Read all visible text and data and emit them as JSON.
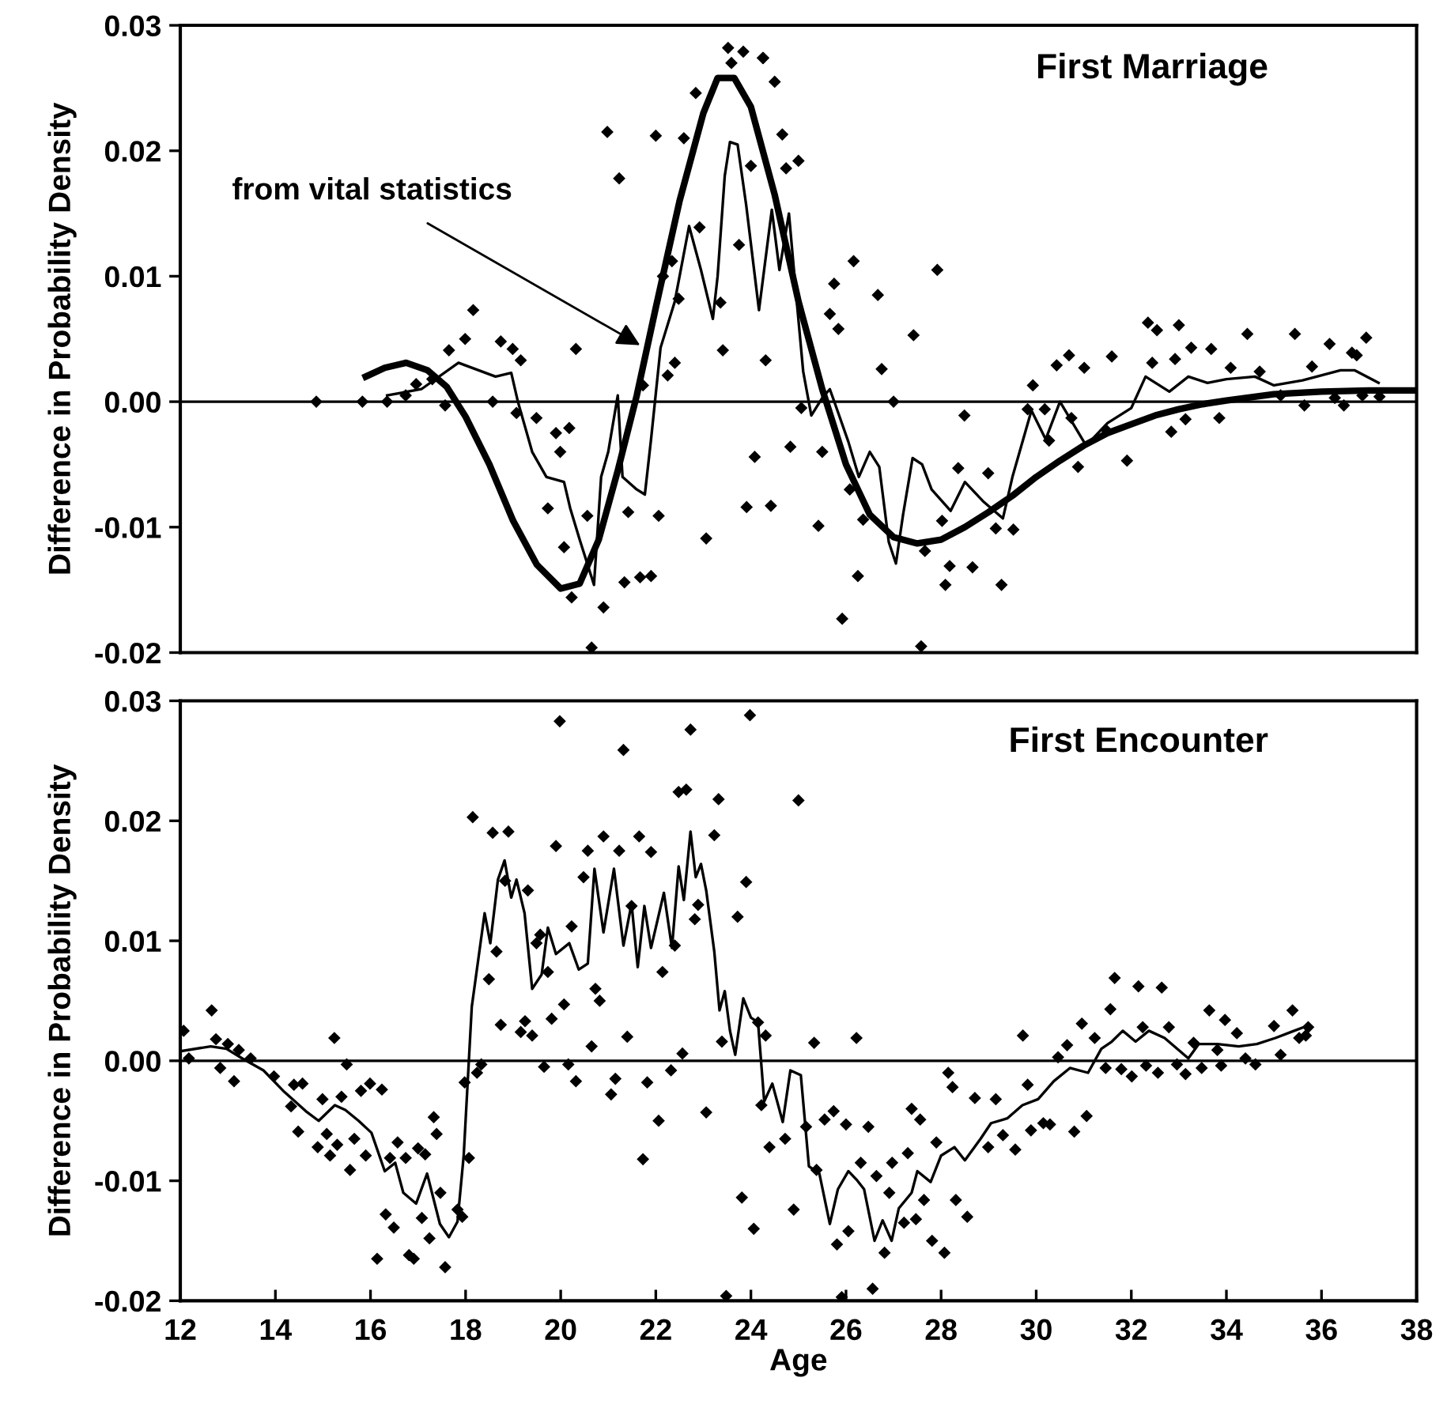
{
  "chart_data": [
    {
      "type": "scatter",
      "ylabel": "Difference in Probability Density",
      "xlim": [
        12,
        38
      ],
      "ylim": [
        -0.02,
        0.03
      ],
      "yticks": [
        {
          "value": -0.02,
          "label": "-0.02"
        },
        {
          "value": -0.01,
          "label": "-0.01"
        },
        {
          "value": 0,
          "label": "0.00"
        },
        {
          "value": 0.01,
          "label": "0.01"
        },
        {
          "value": 0.02,
          "label": "0.02"
        },
        {
          "value": 0.03,
          "label": "0.03"
        }
      ],
      "tick_labels": "y",
      "grid": false,
      "legend": false,
      "ref_lines": [
        {
          "axis": "y",
          "value": 0,
          "color": "#000000"
        }
      ],
      "annotations": [
        "First Marriage",
        {
          "text": "from vital statistics",
          "x": 21.67,
          "y": 0.0045
        }
      ],
      "series": [
        {
          "marker": "diamond",
          "color": "#000000",
          "x": [
            14.86,
            15.83,
            16.35,
            16.74,
            16.96,
            17.3,
            17.65,
            17.99,
            18.16,
            17.57,
            18.74,
            18.99,
            19.16,
            18.57,
            19.07,
            19.49,
            19.9,
            20.18,
            19.99,
            19.73,
            20.07,
            20.23,
            20.32,
            20.56,
            20.65,
            20.9,
            20.98,
            21.23,
            21.34,
            21.67,
            21.9,
            21.42,
            22.06,
            21.73,
            22.0,
            22.25,
            22.4,
            22.48,
            22.34,
            22.15,
            22.59,
            22.84,
            22.92,
            23.06,
            23.41,
            23.36,
            23.52,
            23.59,
            23.84,
            23.75,
            23.91,
            24.08,
            24.31,
            24.26,
            24.0,
            24.5,
            24.25,
            24.66,
            25.0,
            24.74,
            24.83,
            25.5,
            25.06,
            25.42,
            24.42,
            25.75,
            26.16,
            25.66,
            25.84,
            26.67,
            27.92,
            27.42,
            26.75,
            27.0,
            26.08,
            26.36,
            26.25,
            25.92,
            27.58,
            27.66,
            28.18,
            28.09,
            28.66,
            29.27,
            28.49,
            28.02,
            28.36,
            28.99,
            29.15,
            29.52,
            29.93,
            29.82,
            30.18,
            30.43,
            30.69,
            31.01,
            30.74,
            30.27,
            30.88,
            31.59,
            31.91,
            31.48,
            32.35,
            32.54,
            33.0,
            32.44,
            32.92,
            33.26,
            33.68,
            32.84,
            33.14,
            33.85,
            34.44,
            34.09,
            34.7,
            35.44,
            35.8,
            35.64,
            36.17,
            36.47,
            36.64,
            36.94,
            36.74,
            37.22,
            36.86,
            36.28,
            35.14
          ],
          "values": [
            0,
            0,
            0,
            0.0005,
            0.0014,
            0.0018,
            0.0041,
            0.005,
            0.0073,
            -0.0003,
            0.0048,
            0.0042,
            0.0033,
            0,
            -0.0009,
            -0.0013,
            -0.0025,
            -0.0021,
            -0.004,
            -0.0085,
            -0.0116,
            -0.0156,
            0.0042,
            -0.0091,
            -0.0196,
            -0.0164,
            0.0215,
            0.0178,
            -0.0144,
            -0.014,
            -0.0139,
            -0.0088,
            -0.0091,
            0.0013,
            0.0212,
            0.0021,
            0.0031,
            0.0082,
            0.0112,
            0.01,
            0.021,
            0.0246,
            0.0139,
            -0.0109,
            0.0041,
            0.0079,
            0.0282,
            0.027,
            0.0279,
            0.0125,
            -0.0084,
            -0.0044,
            0.0033,
            0.0274,
            0.0188,
            0.0255,
            0.0274,
            0.0213,
            0.0192,
            0.0186,
            -0.0036,
            -0.004,
            -0.0005,
            -0.0099,
            -0.0083,
            0.0094,
            0.0112,
            0.007,
            0.0058,
            0.0085,
            0.0105,
            0.0053,
            0.0026,
            0,
            -0.007,
            -0.0094,
            -0.0139,
            -0.0173,
            -0.0195,
            -0.0119,
            -0.0131,
            -0.0146,
            -0.0132,
            -0.0146,
            -0.0011,
            -0.0095,
            -0.0053,
            -0.0057,
            -0.0101,
            -0.0102,
            0.0013,
            -0.0006,
            -0.0006,
            0.0029,
            0.0037,
            0.0027,
            -0.0013,
            -0.0031,
            -0.0052,
            0.0036,
            -0.0047,
            -0.0023,
            0.0063,
            0.0057,
            0.0061,
            0.0031,
            0.0034,
            0.0043,
            0.0042,
            -0.0024,
            -0.0014,
            -0.0013,
            0.0054,
            0.0027,
            0.0024,
            0.0054,
            0.0028,
            -0.0003,
            0.0046,
            -0.0003,
            0.0039,
            0.0051,
            0.0037,
            0.0004,
            0.0005,
            0.0003,
            0.0005
          ]
        },
        {
          "type": "line",
          "color": "#000000",
          "x": [
            16.35,
            17.07,
            17.85,
            18.63,
            18.96,
            19.1,
            19.4,
            19.7,
            20.07,
            20.2,
            20.4,
            20.7,
            20.85,
            21.0,
            21.2,
            21.3,
            21.6,
            21.77,
            21.9,
            22.1,
            22.4,
            22.7,
            22.95,
            23.2,
            23.3,
            23.45,
            23.56,
            23.72,
            23.9,
            24.17,
            24.44,
            24.6,
            24.8,
            24.94,
            25.1,
            25.27,
            25.5,
            25.66,
            25.8,
            26.05,
            26.27,
            26.5,
            26.7,
            26.9,
            27.05,
            27.2,
            27.4,
            27.6,
            27.8,
            28.2,
            28.5,
            28.9,
            29.3,
            29.5,
            29.9,
            30.2,
            30.5,
            31.05,
            31.5,
            32.0,
            32.3,
            32.8,
            33.2,
            33.6,
            34.0,
            34.6,
            35.0,
            35.6,
            36.4,
            36.7,
            37.2
          ],
          "values": [
            0.0005,
            0.001,
            0.0031,
            0.002,
            0.0023,
            0.0,
            -0.004,
            -0.006,
            -0.0064,
            -0.0085,
            -0.011,
            -0.0146,
            -0.006,
            -0.004,
            0.0005,
            -0.006,
            -0.007,
            -0.0074,
            -0.003,
            0.0043,
            0.008,
            0.014,
            0.0105,
            0.0066,
            0.01,
            0.018,
            0.0207,
            0.0205,
            0.0157,
            0.0073,
            0.0153,
            0.0105,
            0.015,
            0.009,
            0.0024,
            -0.0011,
            0.0003,
            0.001,
            -0.0005,
            -0.0032,
            -0.006,
            -0.004,
            -0.0052,
            -0.0112,
            -0.0129,
            -0.009,
            -0.0045,
            -0.005,
            -0.007,
            -0.0087,
            -0.0064,
            -0.008,
            -0.0093,
            -0.006,
            -0.0007,
            -0.003,
            0.0,
            -0.0035,
            -0.0017,
            -0.0005,
            0.002,
            0.0008,
            0.002,
            0.0015,
            0.0018,
            0.002,
            0.0013,
            0.0017,
            0.0025,
            0.0025,
            0.0015
          ]
        },
        {
          "type": "line",
          "color": "#000000",
          "x": [
            15.9,
            16.3,
            16.75,
            17.2,
            17.6,
            18.0,
            18.5,
            19.0,
            19.5,
            20.0,
            20.4,
            20.8,
            21.2,
            21.6,
            22.0,
            22.5,
            23.0,
            23.3,
            23.65,
            24.0,
            24.5,
            25.0,
            25.5,
            26.0,
            26.5,
            27.0,
            27.5,
            28.0,
            28.5,
            29.0,
            29.5,
            30.0,
            30.5,
            31.0,
            31.5,
            32.0,
            32.5,
            33.0,
            33.5,
            34.0,
            35.0,
            36.0,
            37.0,
            38.0
          ],
          "values": [
            0.002,
            0.0027,
            0.0031,
            0.0025,
            0.0012,
            -0.0012,
            -0.005,
            -0.0095,
            -0.013,
            -0.0149,
            -0.0145,
            -0.011,
            -0.0055,
            0.0005,
            0.0075,
            0.016,
            0.023,
            0.0258,
            0.0258,
            0.0235,
            0.0165,
            0.008,
            0.001,
            -0.005,
            -0.009,
            -0.0108,
            -0.0113,
            -0.011,
            -0.01,
            -0.0088,
            -0.0075,
            -0.006,
            -0.0047,
            -0.0035,
            -0.0025,
            -0.0018,
            -0.0011,
            -0.0006,
            -0.0002,
            0.0001,
            0.0006,
            0.0008,
            0.0009,
            0.0009
          ]
        }
      ]
    },
    {
      "type": "scatter",
      "xlabel": "Age",
      "ylabel": "Difference in Probability Density",
      "xlim": [
        12,
        38
      ],
      "xticks": [
        12,
        14,
        16,
        18,
        20,
        22,
        24,
        26,
        28,
        30,
        32,
        34,
        36,
        38
      ],
      "ylim": [
        -0.02,
        0.03
      ],
      "yticks": [
        {
          "value": -0.02,
          "label": "-0.02"
        },
        {
          "value": -0.01,
          "label": "-0.01"
        },
        {
          "value": 0,
          "label": "0.00"
        },
        {
          "value": 0.01,
          "label": "0.01"
        },
        {
          "value": 0.02,
          "label": "0.02"
        },
        {
          "value": 0.03,
          "label": "0.03"
        }
      ],
      "grid": false,
      "legend": false,
      "ref_lines": [
        {
          "axis": "y",
          "value": 0,
          "color": "#000000"
        }
      ],
      "annotations": [
        "First Encounter"
      ],
      "series": [
        {
          "marker": "diamond",
          "color": "#000000",
          "x": [
            12.07,
            12.18,
            12.66,
            12.75,
            12.84,
            13.0,
            13.13,
            13.23,
            13.48,
            13.97,
            14.33,
            14.39,
            14.48,
            14.57,
            14.89,
            14.99,
            15.08,
            15.15,
            15.24,
            15.3,
            15.39,
            15.5,
            15.57,
            15.66,
            15.8,
            15.9,
            15.99,
            16.24,
            16.14,
            16.32,
            16.49,
            16.57,
            16.41,
            16.74,
            16.81,
            16.91,
            17.0,
            17.08,
            17.15,
            17.24,
            17.33,
            17.39,
            17.47,
            17.57,
            17.83,
            17.93,
            17.98,
            18.07,
            18.15,
            18.24,
            18.33,
            18.49,
            18.57,
            18.65,
            18.74,
            18.83,
            18.9,
            19.16,
            19.25,
            19.31,
            19.4,
            19.49,
            19.57,
            19.65,
            19.73,
            19.81,
            19.9,
            19.98,
            20.07,
            20.16,
            20.23,
            20.32,
            20.48,
            20.57,
            20.65,
            20.73,
            20.82,
            20.9,
            21.06,
            21.15,
            21.23,
            21.32,
            21.4,
            21.49,
            21.65,
            21.73,
            21.82,
            21.9,
            22.06,
            22.14,
            22.32,
            22.4,
            22.48,
            22.56,
            22.64,
            22.73,
            22.82,
            22.89,
            23.06,
            23.23,
            23.32,
            23.39,
            23.48,
            23.72,
            23.81,
            23.9,
            23.98,
            24.06,
            24.15,
            24.22,
            24.31,
            24.39,
            25.0,
            25.33,
            26.22,
            24.9,
            24.72,
            25.16,
            25.38,
            25.55,
            25.74,
            25.81,
            25.91,
            26.0,
            26.05,
            26.31,
            26.47,
            26.56,
            26.64,
            26.81,
            26.91,
            26.97,
            27.22,
            27.3,
            27.38,
            27.47,
            27.56,
            27.64,
            27.81,
            27.9,
            28.07,
            28.15,
            28.24,
            28.31,
            28.55,
            28.71,
            28.99,
            29.15,
            29.3,
            29.56,
            29.72,
            29.82,
            29.89,
            30.15,
            30.29,
            30.46,
            30.65,
            30.8,
            30.96,
            31.06,
            31.23,
            31.46,
            31.56,
            31.65,
            31.79,
            32.01,
            32.15,
            32.24,
            32.31,
            32.56,
            32.64,
            32.79,
            32.96,
            33.14,
            33.31,
            33.48,
            33.64,
            33.81,
            33.89,
            33.97,
            34.22,
            34.4,
            34.61,
            35.0,
            35.14,
            35.39,
            35.53,
            35.67,
            35.72
          ],
          "values": [
            0.0025,
            0.0002,
            0.0042,
            0.0018,
            -0.0006,
            0.0014,
            -0.0017,
            0.0009,
            0.0002,
            -0.0013,
            -0.0038,
            -0.002,
            -0.0059,
            -0.0019,
            -0.0072,
            -0.0032,
            -0.0061,
            -0.0079,
            0.0019,
            -0.007,
            -0.003,
            -0.0003,
            -0.0091,
            -0.0065,
            -0.0025,
            -0.0079,
            -0.0019,
            -0.0024,
            -0.0165,
            -0.0128,
            -0.0139,
            -0.0068,
            -0.0081,
            -0.0081,
            -0.0162,
            -0.0165,
            -0.0073,
            -0.0131,
            -0.0078,
            -0.0148,
            -0.0047,
            -0.0061,
            -0.011,
            -0.0172,
            -0.0124,
            -0.013,
            -0.0018,
            -0.0081,
            0.0203,
            -0.001,
            -0.0003,
            0.0068,
            0.019,
            0.0091,
            0.003,
            0.015,
            0.0191,
            0.0024,
            0.0033,
            0.0142,
            0.0021,
            0.0098,
            0.0105,
            -0.0005,
            0.0074,
            0.0035,
            0.0179,
            0.0283,
            0.0047,
            -0.0003,
            0.0112,
            -0.0017,
            0.0153,
            0.0175,
            0.0012,
            0.006,
            0.005,
            0.0187,
            -0.0028,
            -0.0015,
            0.0175,
            0.0259,
            0.002,
            0.0129,
            0.0187,
            -0.0082,
            -0.0018,
            0.0174,
            -0.005,
            0.0074,
            -0.0008,
            0.0096,
            0.0224,
            0.0006,
            0.0226,
            0.0276,
            0.0118,
            0.013,
            -0.0043,
            0.0188,
            0.0218,
            0.0016,
            -0.0196,
            0.012,
            -0.0114,
            0.0149,
            0.0288,
            -0.014,
            0.0032,
            -0.0037,
            0.0021,
            -0.0072,
            0.0217,
            0.0015,
            0.0019,
            -0.0124,
            -0.0065,
            -0.0055,
            -0.0091,
            -0.0049,
            -0.0042,
            -0.0153,
            -0.0197,
            -0.0053,
            -0.0142,
            -0.0085,
            -0.0055,
            -0.019,
            -0.0096,
            -0.016,
            -0.011,
            -0.0085,
            -0.0135,
            -0.0077,
            -0.004,
            -0.0132,
            -0.0049,
            -0.0116,
            -0.015,
            -0.0068,
            -0.016,
            -0.001,
            -0.0022,
            -0.0116,
            -0.013,
            -0.0031,
            -0.0072,
            -0.0032,
            -0.0062,
            -0.0074,
            0.0021,
            -0.002,
            -0.0058,
            -0.0052,
            -0.0053,
            0.0003,
            0.0013,
            -0.0059,
            0.0031,
            -0.0046,
            0.0019,
            -0.0006,
            0.0043,
            0.0069,
            -0.0007,
            -0.0013,
            0.0062,
            0.0028,
            -0.0004,
            -0.001,
            0.0061,
            0.0028,
            -0.0003,
            -0.0011,
            0.0015,
            -0.0006,
            0.0042,
            0.0009,
            -0.0004,
            0.0034,
            0.0023,
            0.0002,
            -0.0003,
            0.0029,
            0.0005,
            0.0042,
            0.0019,
            0.0021,
            0.0028
          ]
        },
        {
          "type": "line",
          "color": "#000000",
          "x": [
            12.0,
            12.64,
            12.97,
            13.3,
            13.75,
            14.19,
            14.64,
            14.91,
            15.25,
            15.47,
            15.75,
            16.02,
            16.3,
            16.52,
            16.69,
            16.96,
            17.19,
            17.46,
            17.65,
            17.83,
            17.96,
            18.13,
            18.4,
            18.52,
            18.68,
            18.82,
            18.96,
            19.07,
            19.24,
            19.4,
            19.6,
            19.73,
            19.9,
            20.18,
            20.38,
            20.57,
            20.71,
            20.9,
            21.12,
            21.32,
            21.49,
            21.62,
            21.76,
            21.9,
            22.17,
            22.34,
            22.48,
            22.59,
            22.73,
            22.84,
            22.95,
            23.06,
            23.23,
            23.34,
            23.45,
            23.56,
            23.67,
            23.84,
            24.0,
            24.15,
            24.28,
            24.45,
            24.67,
            24.83,
            25.05,
            25.22,
            25.44,
            25.66,
            25.83,
            26.05,
            26.22,
            26.38,
            26.6,
            26.77,
            26.96,
            27.11,
            27.38,
            27.5,
            27.78,
            28.0,
            28.28,
            28.5,
            28.83,
            29.05,
            29.39,
            29.71,
            30.04,
            30.37,
            30.71,
            31.09,
            31.37,
            31.59,
            31.82,
            32.09,
            32.37,
            32.7,
            33.2,
            33.42,
            33.81,
            34.26,
            34.64,
            35.03,
            35.36,
            35.69
          ],
          "values": [
            0.0008,
            0.0012,
            0.001,
            0.0002,
            -0.0008,
            -0.0026,
            -0.0042,
            -0.005,
            -0.0037,
            -0.0041,
            -0.005,
            -0.006,
            -0.0092,
            -0.0085,
            -0.011,
            -0.0119,
            -0.0094,
            -0.0136,
            -0.0147,
            -0.0134,
            -0.0079,
            0.0045,
            0.0123,
            0.0098,
            0.0151,
            0.0167,
            0.0136,
            0.0151,
            0.0123,
            0.006,
            0.0072,
            0.0111,
            0.0089,
            0.0098,
            0.0076,
            0.0081,
            0.016,
            0.0107,
            0.016,
            0.0096,
            0.0131,
            0.0078,
            0.0129,
            0.0094,
            0.014,
            0.0094,
            0.0162,
            0.0134,
            0.0191,
            0.0153,
            0.0164,
            0.0142,
            0.0091,
            0.0042,
            0.0058,
            0.0025,
            0.0005,
            0.0052,
            0.0036,
            0.0032,
            -0.0034,
            -0.0019,
            -0.0051,
            -0.0008,
            -0.0012,
            -0.0088,
            -0.0094,
            -0.0136,
            -0.0107,
            -0.0092,
            -0.0099,
            -0.0107,
            -0.015,
            -0.0133,
            -0.015,
            -0.0123,
            -0.011,
            -0.0092,
            -0.0101,
            -0.0079,
            -0.0072,
            -0.0083,
            -0.0065,
            -0.0052,
            -0.0048,
            -0.0037,
            -0.0032,
            -0.0017,
            -0.0006,
            -0.001,
            0.001,
            0.0016,
            0.0025,
            0.0016,
            0.0025,
            0.0019,
            0.0002,
            0.0014,
            0.0014,
            0.0012,
            0.0014,
            0.0019,
            0.0024,
            0.0029
          ]
        }
      ]
    }
  ]
}
